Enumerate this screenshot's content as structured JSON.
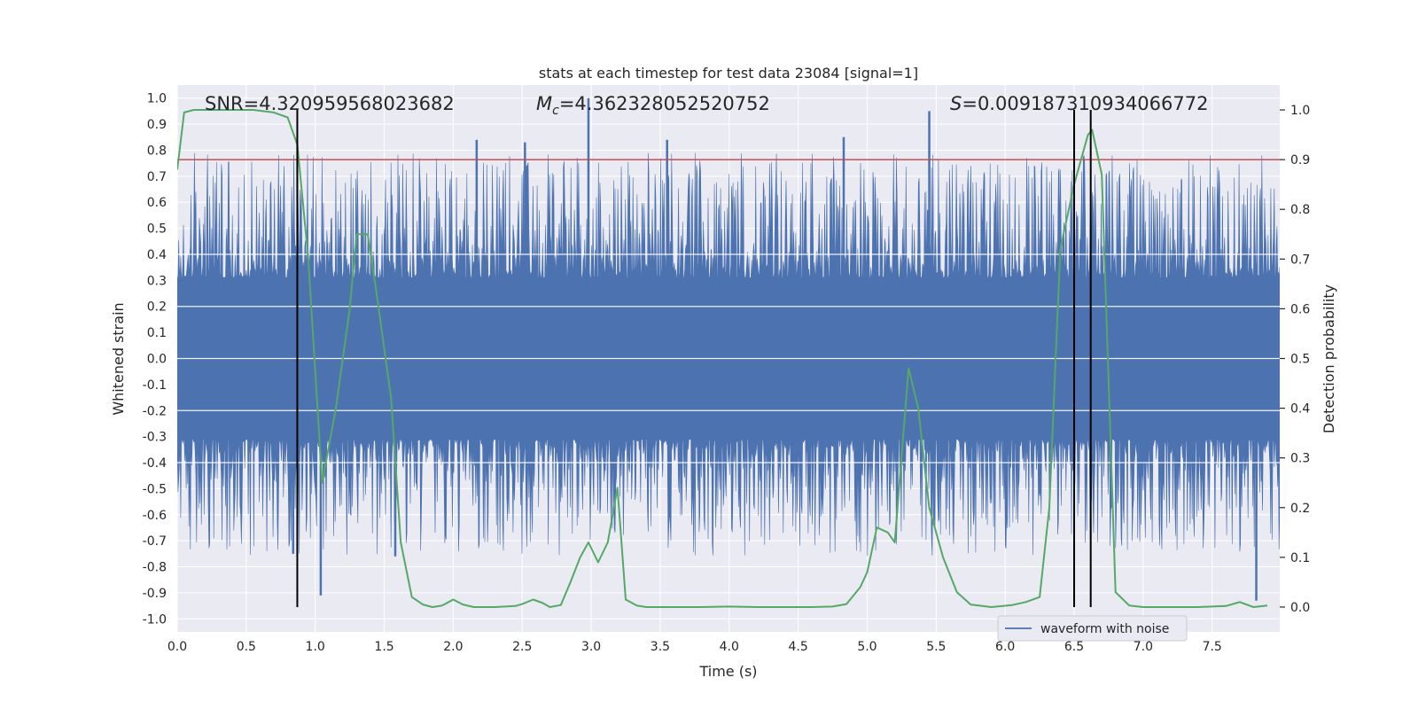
{
  "chart_data": {
    "type": "line",
    "title": "stats at each timestep for test data 23084 [signal=1]",
    "xlabel": "Time (s)",
    "ylabel": "Whitened strain",
    "ylabel_right": "Detection probability",
    "xlim": [
      0.0,
      7.99
    ],
    "ylim": [
      -1.05,
      1.05
    ],
    "ylim_right": [
      -0.05,
      1.05
    ],
    "xticks": [
      0.0,
      0.5,
      1.0,
      1.5,
      2.0,
      2.5,
      3.0,
      3.5,
      4.0,
      4.5,
      5.0,
      5.5,
      6.0,
      6.5,
      7.0,
      7.5
    ],
    "xtick_labels": [
      "0.0",
      "0.5",
      "1.0",
      "1.5",
      "2.0",
      "2.5",
      "3.0",
      "3.5",
      "4.0",
      "4.5",
      "5.0",
      "5.5",
      "6.0",
      "6.5",
      "7.0",
      "7.5"
    ],
    "yticks": [
      1.0,
      0.9,
      0.8,
      0.7,
      0.6,
      0.5,
      0.4,
      0.3,
      0.2,
      0.1,
      0.0,
      -0.1,
      -0.2,
      -0.3,
      -0.4,
      -0.5,
      -0.6,
      -0.7,
      -0.8,
      -0.9,
      -1.0
    ],
    "ytick_labels": [
      "1.0",
      "0.9",
      "0.8",
      "0.7",
      "0.6",
      "0.5",
      "0.4",
      "0.3",
      "0.2",
      "0.1",
      "0.0",
      "-0.1",
      "-0.2",
      "-0.3",
      "-0.4",
      "-0.5",
      "-0.6",
      "-0.7",
      "-0.8",
      "-0.9",
      "-1.0"
    ],
    "yticks_right": [
      1.0,
      0.9,
      0.8,
      0.7,
      0.6,
      0.5,
      0.4,
      0.3,
      0.2,
      0.1,
      0.0
    ],
    "ytick_labels_right": [
      "1.0",
      "0.9",
      "0.8",
      "0.7",
      "0.6",
      "0.5",
      "0.4",
      "0.3",
      "0.2",
      "0.1",
      "0.0"
    ],
    "annotations": {
      "snr": "SNR=4.320959568023682",
      "mc_symbol": "M",
      "mc_sub": "c",
      "mc_value": "=4.362328052520752",
      "s_symbol": "S",
      "s_value": "=0.009187310934066772"
    },
    "threshold": {
      "value": 0.9,
      "axis": "right",
      "color": "#c44e52"
    },
    "vlines": [
      0.87,
      6.5,
      6.62
    ],
    "legend": {
      "label": "waveform with noise",
      "position": "lower-right"
    },
    "colors": {
      "plot_bg": "#eaeaf2",
      "grid": "#ffffff",
      "waveform": "#4c72b0",
      "probability": "#55a868",
      "vline": "#000000"
    },
    "series": [
      {
        "name": "waveform with noise",
        "axis": "left",
        "kind": "noise-band",
        "core": 0.25,
        "spike_max": 1.0,
        "spikes": [
          {
            "x": 2.98,
            "y": 1.0
          },
          {
            "x": 5.45,
            "y": 0.95
          },
          {
            "x": 4.83,
            "y": 0.85
          },
          {
            "x": 2.17,
            "y": 0.84
          },
          {
            "x": 3.55,
            "y": 0.84
          },
          {
            "x": 2.52,
            "y": 0.83
          },
          {
            "x": 1.04,
            "y": -0.91
          },
          {
            "x": 7.82,
            "y": -0.93
          },
          {
            "x": 1.58,
            "y": -0.76
          },
          {
            "x": 0.84,
            "y": -0.75
          }
        ]
      },
      {
        "name": "detection probability",
        "axis": "right",
        "x": [
          0.0,
          0.05,
          0.12,
          0.25,
          0.4,
          0.55,
          0.7,
          0.8,
          0.87,
          0.95,
          1.05,
          1.15,
          1.25,
          1.3,
          1.38,
          1.45,
          1.55,
          1.62,
          1.7,
          1.78,
          1.85,
          1.92,
          2.0,
          2.07,
          2.15,
          2.3,
          2.45,
          2.5,
          2.58,
          2.65,
          2.7,
          2.78,
          2.85,
          2.92,
          2.98,
          3.05,
          3.12,
          3.19,
          3.25,
          3.33,
          3.4,
          3.6,
          3.8,
          4.0,
          4.2,
          4.4,
          4.6,
          4.75,
          4.85,
          4.95,
          5.0,
          5.07,
          5.15,
          5.2,
          5.3,
          5.37,
          5.45,
          5.55,
          5.65,
          5.75,
          5.9,
          6.05,
          6.15,
          6.25,
          6.32,
          6.4,
          6.5,
          6.6,
          6.63,
          6.7,
          6.8,
          6.9,
          7.0,
          7.2,
          7.4,
          7.6,
          7.7,
          7.8,
          7.9
        ],
        "values": [
          0.88,
          0.995,
          1.0,
          1.0,
          1.0,
          1.0,
          0.995,
          0.985,
          0.93,
          0.7,
          0.25,
          0.4,
          0.6,
          0.75,
          0.75,
          0.62,
          0.42,
          0.13,
          0.02,
          0.005,
          0.0,
          0.003,
          0.015,
          0.005,
          0.0,
          0.0,
          0.002,
          0.006,
          0.015,
          0.008,
          0.0,
          0.004,
          0.05,
          0.1,
          0.13,
          0.09,
          0.13,
          0.24,
          0.015,
          0.003,
          0.0,
          0.0,
          0.0,
          0.001,
          0.0,
          0.0,
          0.0,
          0.001,
          0.006,
          0.04,
          0.07,
          0.16,
          0.15,
          0.13,
          0.48,
          0.4,
          0.2,
          0.1,
          0.03,
          0.005,
          0.0,
          0.004,
          0.01,
          0.02,
          0.2,
          0.72,
          0.85,
          0.95,
          0.96,
          0.87,
          0.03,
          0.003,
          0.0,
          0.0,
          0.0,
          0.002,
          0.01,
          0.0,
          0.003
        ]
      }
    ]
  }
}
